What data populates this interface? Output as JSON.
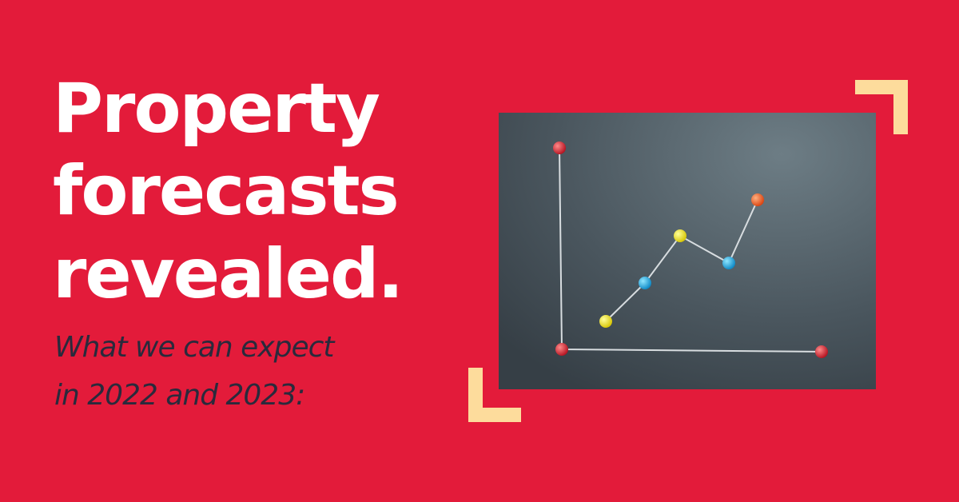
{
  "headline": [
    "Property",
    "forecasts",
    "revealed."
  ],
  "subtitle": [
    "What we can expect",
    "in 2022 and 2023:"
  ]
}
